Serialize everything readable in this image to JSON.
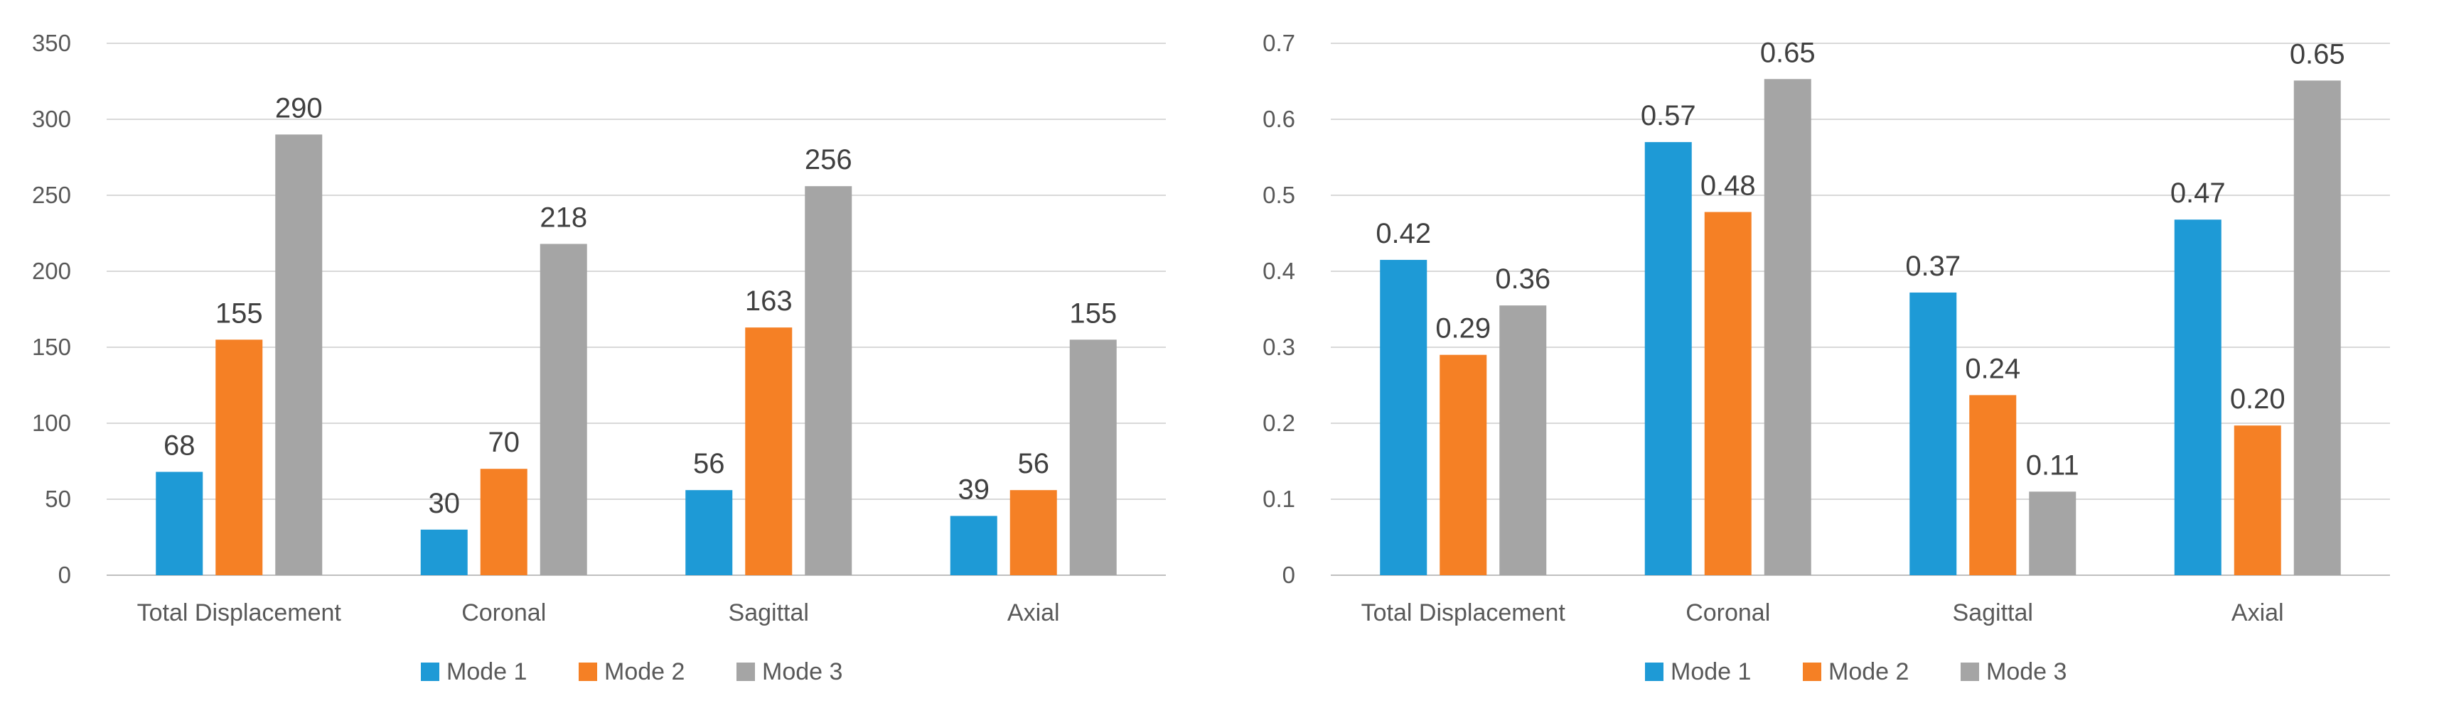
{
  "colors": {
    "mode1": "#1E9AD6",
    "mode2": "#F58025",
    "mode3": "#A5A5A5",
    "grid": "#D9D9D9",
    "axis": "#BFBFBF",
    "text": "#595959",
    "label": "#404040"
  },
  "chart_data": [
    {
      "type": "bar",
      "title": "",
      "xlabel": "",
      "ylabel": "",
      "ylim": [
        0,
        350
      ],
      "yticks": [
        "0",
        "50",
        "100",
        "150",
        "200",
        "250",
        "300",
        "350"
      ],
      "ytick_values": [
        0,
        50,
        100,
        150,
        200,
        250,
        300,
        350
      ],
      "grid": true,
      "legend_position": "bottom",
      "categories": [
        "Total Displacement",
        "Coronal",
        "Sagittal",
        "Axial"
      ],
      "series": [
        {
          "name": "Mode 1",
          "values": [
            68,
            30,
            56,
            39
          ],
          "labels": [
            "68",
            "30",
            "56",
            "39"
          ]
        },
        {
          "name": "Mode 2",
          "values": [
            155,
            70,
            163,
            56
          ],
          "labels": [
            "155",
            "70",
            "163",
            "56"
          ]
        },
        {
          "name": "Mode 3",
          "values": [
            290,
            218,
            256,
            155
          ],
          "labels": [
            "290",
            "218",
            "256",
            "155"
          ]
        }
      ]
    },
    {
      "type": "bar",
      "title": "",
      "xlabel": "",
      "ylabel": "",
      "ylim": [
        0,
        0.7
      ],
      "yticks": [
        "0",
        "0.1",
        "0.2",
        "0.3",
        "0.4",
        "0.5",
        "0.6",
        "0.7"
      ],
      "ytick_values": [
        0,
        0.1,
        0.2,
        0.3,
        0.4,
        0.5,
        0.6,
        0.7
      ],
      "grid": true,
      "legend_position": "bottom",
      "categories": [
        "Total Displacement",
        "Coronal",
        "Sagittal",
        "Axial"
      ],
      "series": [
        {
          "name": "Mode 1",
          "values": [
            0.415,
            0.57,
            0.372,
            0.468
          ],
          "labels": [
            "0.42",
            "0.57",
            "0.37",
            "0.47"
          ]
        },
        {
          "name": "Mode 2",
          "values": [
            0.29,
            0.478,
            0.237,
            0.197
          ],
          "labels": [
            "0.29",
            "0.48",
            "0.24",
            "0.20"
          ]
        },
        {
          "name": "Mode 3",
          "values": [
            0.355,
            0.653,
            0.11,
            0.651
          ],
          "labels": [
            "0.36",
            "0.65",
            "0.11",
            "0.65"
          ]
        }
      ]
    }
  ]
}
